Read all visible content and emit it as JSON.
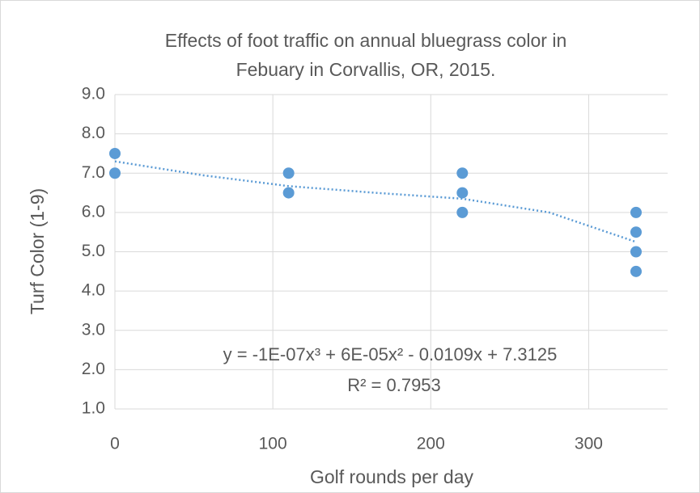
{
  "chart_data": {
    "type": "scatter",
    "title": [
      "Effects of foot traffic on annual bluegrass color in",
      "Febuary in Corvallis, OR, 2015."
    ],
    "x_label": "Golf rounds per day",
    "y_label": "Turf Color (1-9)",
    "x": [
      0,
      0,
      110,
      110,
      220,
      220,
      220,
      330,
      330,
      330,
      330
    ],
    "values": [
      7.5,
      7.0,
      7.0,
      6.5,
      7.0,
      6.5,
      6.0,
      6.0,
      5.5,
      5.0,
      4.5
    ],
    "color": "#5b9bd5",
    "trendline": {
      "x": [
        0,
        55,
        110,
        165,
        220,
        275,
        330
      ],
      "values": [
        7.3,
        6.95,
        6.67,
        6.5,
        6.35,
        6.0,
        5.25
      ],
      "color": "#5b9bd5"
    },
    "annotations": [
      "y = -1E-07x³ + 6E-05x² - 0.0109x + 7.3125",
      "R² = 0.7953"
    ],
    "xlim": [
      0,
      350
    ],
    "xticks": [
      0,
      100,
      200,
      300
    ],
    "ylim": [
      1,
      9
    ],
    "yticks": [
      {
        "value": 1,
        "label": "1.0"
      },
      {
        "value": 2,
        "label": "2.0"
      },
      {
        "value": 3,
        "label": "3.0"
      },
      {
        "value": 4,
        "label": "4.0"
      },
      {
        "value": 5,
        "label": "5.0"
      },
      {
        "value": 6,
        "label": "6.0"
      },
      {
        "value": 7,
        "label": "7.0"
      },
      {
        "value": 8,
        "label": "8.0"
      },
      {
        "value": 9,
        "label": "9.0"
      }
    ],
    "grid": true
  }
}
